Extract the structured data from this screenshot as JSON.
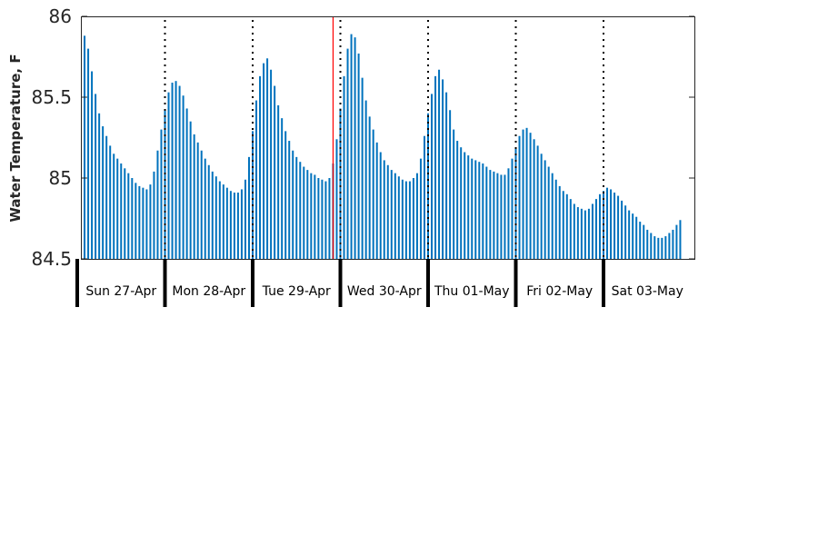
{
  "chart_data": {
    "type": "bar",
    "ylabel": "Water Temperature, F",
    "ylim": [
      84.5,
      86
    ],
    "yticks": [
      "84.5",
      "85",
      "85.5",
      "86"
    ],
    "bar_color": "#0072bd",
    "grid": false,
    "samples_per_day": 24,
    "first_sample_hour": 0,
    "day_labels": [
      "Sun 27-Apr",
      "Mon 28-Apr",
      "Tue 29-Apr",
      "Wed 30-Apr",
      "Thu 01-May",
      "Fri 02-May",
      "Sat 03-May"
    ],
    "days": [
      "2025-04-27",
      "2025-04-28",
      "2025-04-29",
      "2025-04-30",
      "2025-05-01",
      "2025-05-02",
      "2025-05-03"
    ],
    "current_time_marker": "2025-04-29 22:00",
    "current_time_color": "#ff0000",
    "values": [
      85.75,
      85.85,
      85.88,
      85.8,
      85.66,
      85.52,
      85.4,
      85.32,
      85.26,
      85.2,
      85.15,
      85.12,
      85.09,
      85.06,
      85.03,
      85.0,
      84.97,
      84.95,
      84.94,
      84.93,
      84.96,
      85.04,
      85.17,
      85.3,
      85.42,
      85.53,
      85.59,
      85.6,
      85.57,
      85.51,
      85.43,
      85.35,
      85.27,
      85.22,
      85.17,
      85.12,
      85.08,
      85.04,
      85.01,
      84.98,
      84.96,
      84.94,
      84.92,
      84.91,
      84.91,
      84.93,
      84.99,
      85.13,
      85.29,
      85.48,
      85.63,
      85.71,
      85.74,
      85.67,
      85.57,
      85.45,
      85.37,
      85.29,
      85.23,
      85.17,
      85.13,
      85.1,
      85.07,
      85.05,
      85.03,
      85.02,
      85.0,
      84.99,
      84.98,
      85.0,
      85.09,
      85.24,
      85.43,
      85.63,
      85.8,
      85.89,
      85.87,
      85.77,
      85.62,
      85.48,
      85.38,
      85.3,
      85.22,
      85.16,
      85.11,
      85.08,
      85.05,
      85.03,
      85.01,
      84.99,
      84.98,
      84.98,
      85.0,
      85.03,
      85.12,
      85.26,
      85.4,
      85.52,
      85.63,
      85.67,
      85.61,
      85.53,
      85.42,
      85.3,
      85.23,
      85.19,
      85.16,
      85.14,
      85.12,
      85.11,
      85.1,
      85.09,
      85.07,
      85.05,
      85.04,
      85.03,
      85.02,
      85.02,
      85.06,
      85.12,
      85.19,
      85.26,
      85.3,
      85.31,
      85.28,
      85.24,
      85.2,
      85.15,
      85.11,
      85.07,
      85.03,
      84.99,
      84.95,
      84.92,
      84.9,
      84.87,
      84.84,
      84.82,
      84.81,
      84.8,
      84.81,
      84.84,
      84.87,
      84.9,
      84.92,
      84.94,
      84.93,
      84.91,
      84.89,
      84.86,
      84.83,
      84.8,
      84.78,
      84.76,
      84.73,
      84.71,
      84.68,
      84.66,
      84.64,
      84.63,
      84.63,
      84.64,
      84.66,
      84.68,
      84.71,
      84.74
    ]
  }
}
